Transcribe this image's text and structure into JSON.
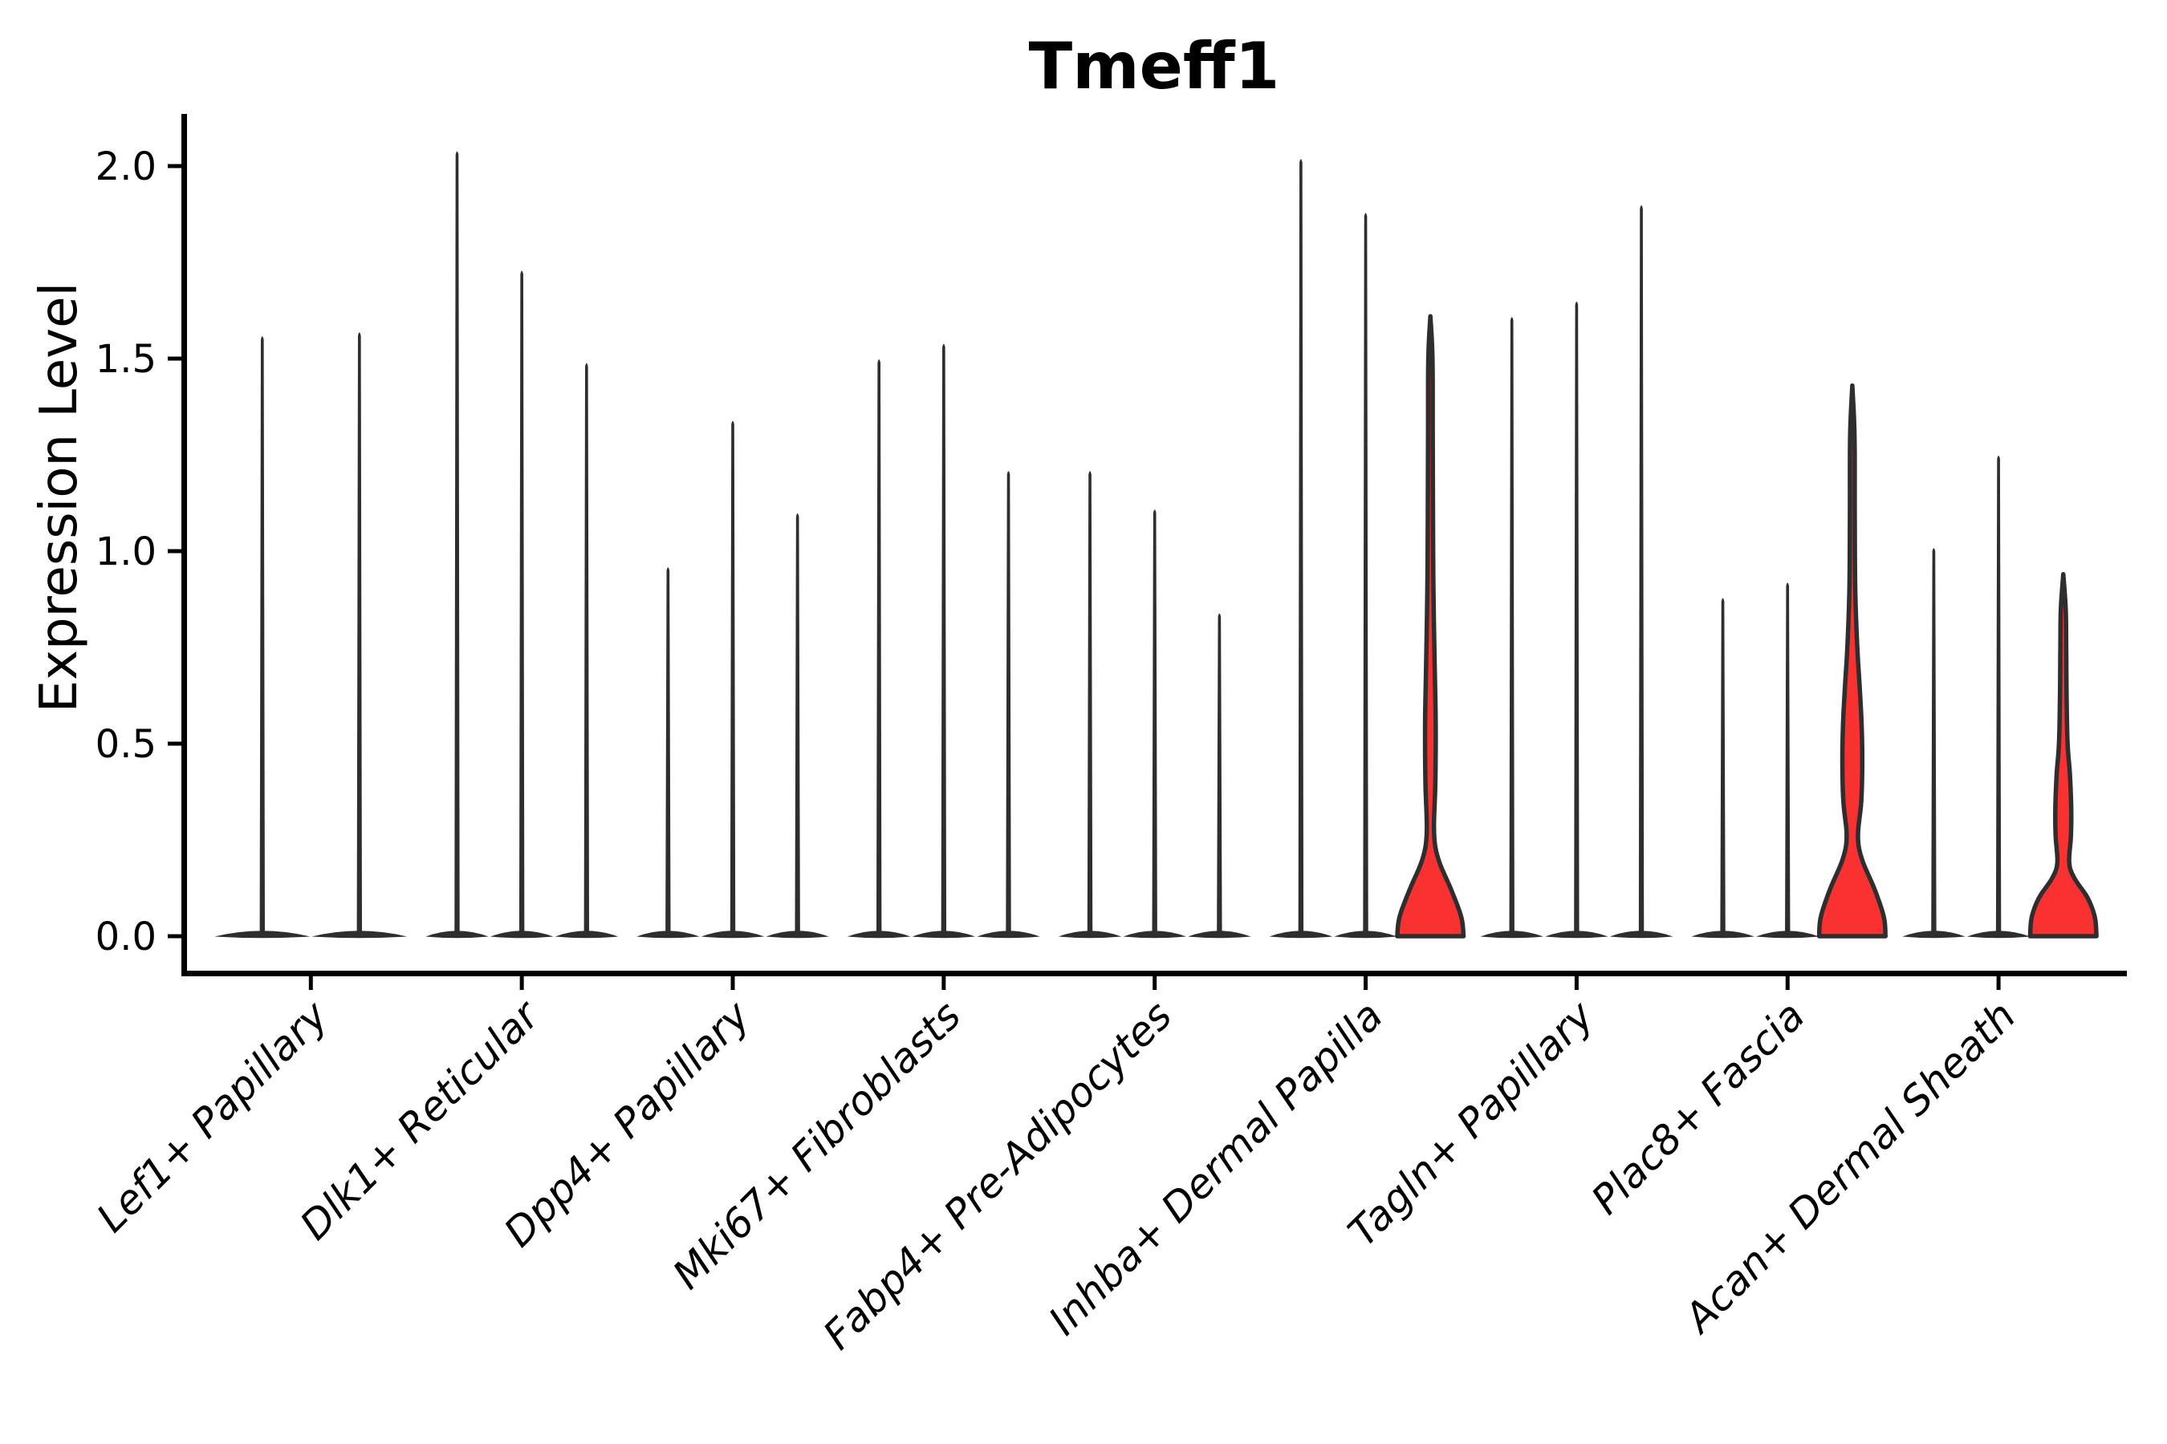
{
  "figure": {
    "background": "#ffffff"
  },
  "chart_data": {
    "type": "violin",
    "title": "Tmeff1",
    "ylabel": "Expression Level",
    "xlabel": "",
    "grid": false,
    "legend_position": "none",
    "ylim": [
      -0.09,
      2.14
    ],
    "yticks": [
      "0.0",
      "0.5",
      "1.0",
      "1.5",
      "2.0"
    ],
    "ytick_values": [
      0.0,
      0.5,
      1.0,
      1.5,
      2.0
    ],
    "categories": [
      "Lef1+ Papillary",
      "Dlk1+ Reticular",
      "Dpp4+ Papillary",
      "Mki67+ Fibroblasts",
      "Fabp4+ Pre-Adipocytes",
      "Inhba+ Dermal Papilla",
      "Tagln+ Papillary",
      "Plac8+ Fascia",
      "Acan+ Dermal Sheath"
    ],
    "description": "Stacked violin plot of Tmeff1 expression; most violins collapse to a flat base at 0 with a thin spike to the max expressed cell; three violins (one each in Inhba+ Dermal Papilla, Plac8+ Fascia, Acan+ Dermal Sheath) have visible red-filled density bodies.",
    "violin_fill_color": "#fa3131",
    "outline_color": "#2e2e2e",
    "groups": [
      {
        "category": "Lef1+ Papillary",
        "violins": [
          {
            "max": 1.56,
            "highlighted": false
          },
          {
            "max": 1.57,
            "highlighted": false
          }
        ]
      },
      {
        "category": "Dlk1+ Reticular",
        "violins": [
          {
            "max": 2.04,
            "highlighted": false
          },
          {
            "max": 1.73,
            "highlighted": false
          },
          {
            "max": 1.49,
            "highlighted": false
          }
        ]
      },
      {
        "category": "Dpp4+ Papillary",
        "violins": [
          {
            "max": 0.96,
            "highlighted": false
          },
          {
            "max": 1.34,
            "highlighted": false
          },
          {
            "max": 1.1,
            "highlighted": false
          }
        ]
      },
      {
        "category": "Mki67+ Fibroblasts",
        "violins": [
          {
            "max": 1.5,
            "highlighted": false
          },
          {
            "max": 1.54,
            "highlighted": false
          },
          {
            "max": 1.21,
            "highlighted": false
          }
        ]
      },
      {
        "category": "Fabp4+ Pre-Adipocytes",
        "violins": [
          {
            "max": 1.21,
            "highlighted": false
          },
          {
            "max": 1.11,
            "highlighted": false
          },
          {
            "max": 0.84,
            "highlighted": false
          }
        ]
      },
      {
        "category": "Inhba+ Dermal Papilla",
        "violins": [
          {
            "max": 2.02,
            "highlighted": false
          },
          {
            "max": 1.88,
            "highlighted": false
          },
          {
            "max": 1.61,
            "highlighted": true,
            "profile": [
              [
                0,
                1.0
              ],
              [
                0.05,
                0.93
              ],
              [
                0.12,
                0.63
              ],
              [
                0.2,
                0.24
              ],
              [
                0.27,
                0.11
              ],
              [
                0.4,
                0.15
              ],
              [
                0.55,
                0.16
              ],
              [
                0.7,
                0.13
              ],
              [
                0.85,
                0.1
              ],
              [
                1.0,
                0.083
              ],
              [
                1.3,
                0.071
              ],
              [
                1.5,
                0.063
              ],
              [
                1.61,
                0.0
              ]
            ]
          }
        ]
      },
      {
        "category": "Tagln+ Papillary",
        "violins": [
          {
            "max": 1.61,
            "highlighted": false
          },
          {
            "max": 1.65,
            "highlighted": false
          },
          {
            "max": 1.9,
            "highlighted": false
          }
        ]
      },
      {
        "category": "Plac8+ Fascia",
        "violins": [
          {
            "max": 0.88,
            "highlighted": false
          },
          {
            "max": 0.92,
            "highlighted": false
          },
          {
            "max": 1.43,
            "highlighted": true,
            "profile": [
              [
                0,
                1.0
              ],
              [
                0.05,
                0.95
              ],
              [
                0.12,
                0.68
              ],
              [
                0.2,
                0.29
              ],
              [
                0.26,
                0.17
              ],
              [
                0.35,
                0.27
              ],
              [
                0.45,
                0.3
              ],
              [
                0.55,
                0.28
              ],
              [
                0.65,
                0.22
              ],
              [
                0.75,
                0.15
              ],
              [
                0.9,
                0.088
              ],
              [
                1.1,
                0.073
              ],
              [
                1.3,
                0.066
              ],
              [
                1.43,
                0.0
              ]
            ]
          }
        ]
      },
      {
        "category": "Acan+ Dermal Sheath",
        "violins": [
          {
            "max": 1.01,
            "highlighted": false
          },
          {
            "max": 1.25,
            "highlighted": false
          },
          {
            "max": 0.94,
            "highlighted": true,
            "profile": [
              [
                0,
                1.0
              ],
              [
                0.05,
                0.95
              ],
              [
                0.1,
                0.73
              ],
              [
                0.15,
                0.34
              ],
              [
                0.19,
                0.18
              ],
              [
                0.26,
                0.23
              ],
              [
                0.33,
                0.24
              ],
              [
                0.42,
                0.2
              ],
              [
                0.5,
                0.13
              ],
              [
                0.62,
                0.1
              ],
              [
                0.75,
                0.088
              ],
              [
                0.85,
                0.073
              ],
              [
                0.94,
                0.0
              ]
            ]
          }
        ]
      }
    ]
  }
}
